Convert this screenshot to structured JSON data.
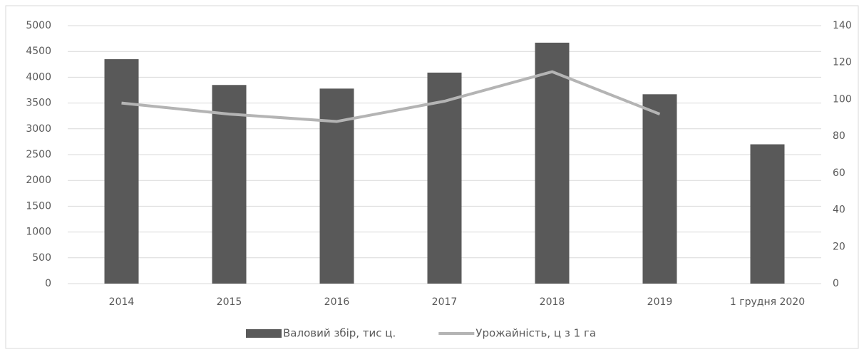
{
  "chart_data": {
    "type": "bar",
    "categories": [
      "2014",
      "2015",
      "2016",
      "2017",
      "2018",
      "2019",
      "1 грудня 2020"
    ],
    "series": [
      {
        "name": "Валовий збір, тис ц.",
        "type": "bar",
        "color": "#595959",
        "values": [
          4350,
          3850,
          3780,
          4090,
          4670,
          3670,
          2700
        ]
      },
      {
        "name": "Урожайність, ц з 1 га",
        "type": "line",
        "axis": "y2",
        "color": "#b4b4b4",
        "values": [
          98,
          92,
          88,
          99,
          115,
          92,
          null
        ]
      }
    ],
    "ylim": [
      0,
      5000
    ],
    "yticks": [
      0,
      500,
      1000,
      1500,
      2000,
      2500,
      3000,
      3500,
      4000,
      4500,
      5000
    ],
    "y2lim": [
      0,
      140
    ],
    "y2ticks": [
      0,
      20,
      40,
      60,
      80,
      100,
      120,
      140
    ],
    "grid": true,
    "legend": "bottom"
  }
}
